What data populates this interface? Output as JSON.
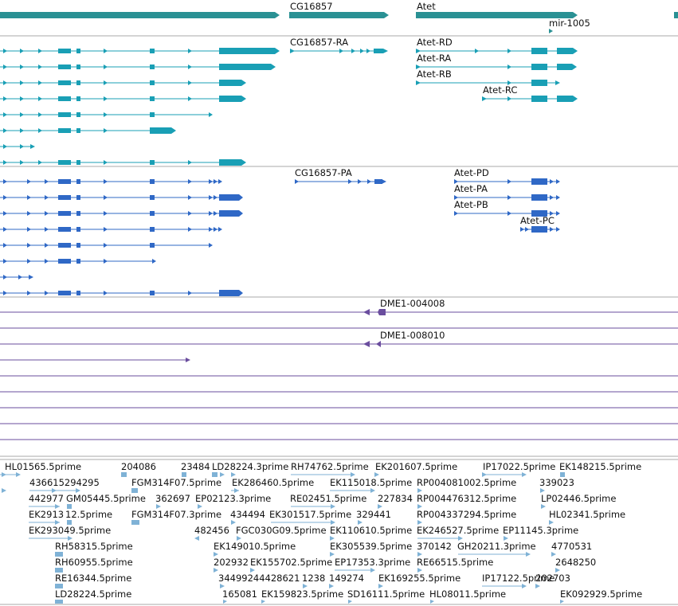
{
  "colors": {
    "gene": "#2a9194",
    "rna": "#199fb5",
    "protein": "#2f68c6",
    "motif": "#6a4d9e",
    "est": "#7fb2d6",
    "separator": "#aaaaaa"
  },
  "genes": [
    {
      "label": "CG16857"
    },
    {
      "label": "Atet"
    },
    {
      "label": "mir-1005"
    }
  ],
  "transcripts": [
    {
      "label": "CG16857-RA"
    },
    {
      "label": "Atet-RD"
    },
    {
      "label": "Atet-RA"
    },
    {
      "label": "Atet-RB"
    },
    {
      "label": "Atet-RC"
    }
  ],
  "proteins": [
    {
      "label": "CG16857-PA"
    },
    {
      "label": "Atet-PD"
    },
    {
      "label": "Atet-PA"
    },
    {
      "label": "Atet-PB"
    },
    {
      "label": "Atet-PC"
    }
  ],
  "motifs": [
    {
      "label": "DME1-004008"
    },
    {
      "label": "DME1-008010"
    }
  ],
  "ests": [
    "HL01565.5prime",
    "204086",
    "23484",
    "LD28224.3prime",
    "RH74762.5prime",
    "EK201607.5prime",
    "IP17022.5prime",
    "EK148215.5prime",
    "436615294295",
    "FGM314F07.5prime",
    "EK286460.5prime",
    "EK115018.5prime",
    "RP004081002.5prime",
    "339023",
    "442977",
    "GM05445.5prime",
    "362697",
    "EP02123.3prime",
    "RE02451.5prime",
    "227834",
    "RP004476312.5prime",
    "LP02446.5prime",
    "EK2913",
    "12.5prime",
    "FGM314F07.3prime",
    "434494",
    "EK301517.5prime",
    "329441",
    "RP004337294.5prime",
    "HL02341.5prime",
    "EK293049.5prime",
    "482456",
    "FGC030G09.5prime",
    "EK110610.5prime",
    "EK246527.5prime",
    "EP11145.3prime",
    "RH58315.5prime",
    "EK149010.5prime",
    "EK305539.5prime",
    "370142",
    "GH20211.3prime",
    "4770531",
    "RH60955.5prime",
    "202932",
    "EK155702.5prime",
    "EP17353.3prime",
    "RE66515.5prime",
    "2648250",
    "RE16344.5prime",
    "34499244428621",
    "1238",
    "149274",
    "EK169255.5prime",
    "IP17122.5prime",
    "202703",
    "LD28224.5prime",
    "165081",
    "EK159823.5prime",
    "SD16111.5prime",
    "HL08011.5prime",
    "EK092929.5prime"
  ]
}
